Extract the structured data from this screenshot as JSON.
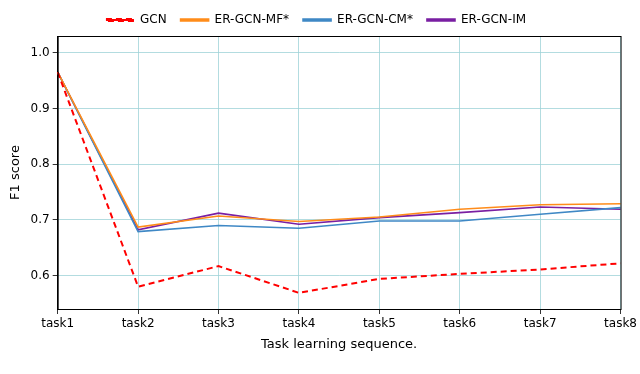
{
  "chart_data": {
    "type": "line",
    "x_label": "Task learning sequence.",
    "y_label": "F1 score",
    "categories": [
      "task1",
      "task2",
      "task3",
      "task4",
      "task5",
      "task6",
      "task7",
      "task8"
    ],
    "series": [
      {
        "name": "GCN",
        "color": "#ff0000",
        "line_style": "dashed",
        "marker": "none",
        "values": [
          0.965,
          0.58,
          0.617,
          0.569,
          0.594,
          0.603,
          0.611,
          0.622
        ]
      },
      {
        "name": "ER-GCN-MF*",
        "color": "#ff8c1a",
        "line_style": "solid",
        "marker": "none",
        "values": [
          0.965,
          0.687,
          0.707,
          0.697,
          0.705,
          0.719,
          0.727,
          0.729
        ]
      },
      {
        "name": "ER-GCN-CM*",
        "color": "#3f88c5",
        "line_style": "solid",
        "marker": "none",
        "values": [
          0.965,
          0.679,
          0.69,
          0.685,
          0.698,
          0.698,
          0.71,
          0.722
        ]
      },
      {
        "name": "ER-GCN-IM",
        "color": "#7a1fa2",
        "line_style": "solid",
        "marker": "none",
        "values": [
          0.965,
          0.682,
          0.712,
          0.692,
          0.704,
          0.713,
          0.723,
          0.719
        ]
      }
    ],
    "ylim": [
      0.54,
      1.03
    ],
    "yticks": [
      0.6,
      0.7,
      0.8,
      0.9,
      {
        "value": 1,
        "label": "1.0"
      }
    ],
    "grid": true,
    "legend": "top"
  }
}
